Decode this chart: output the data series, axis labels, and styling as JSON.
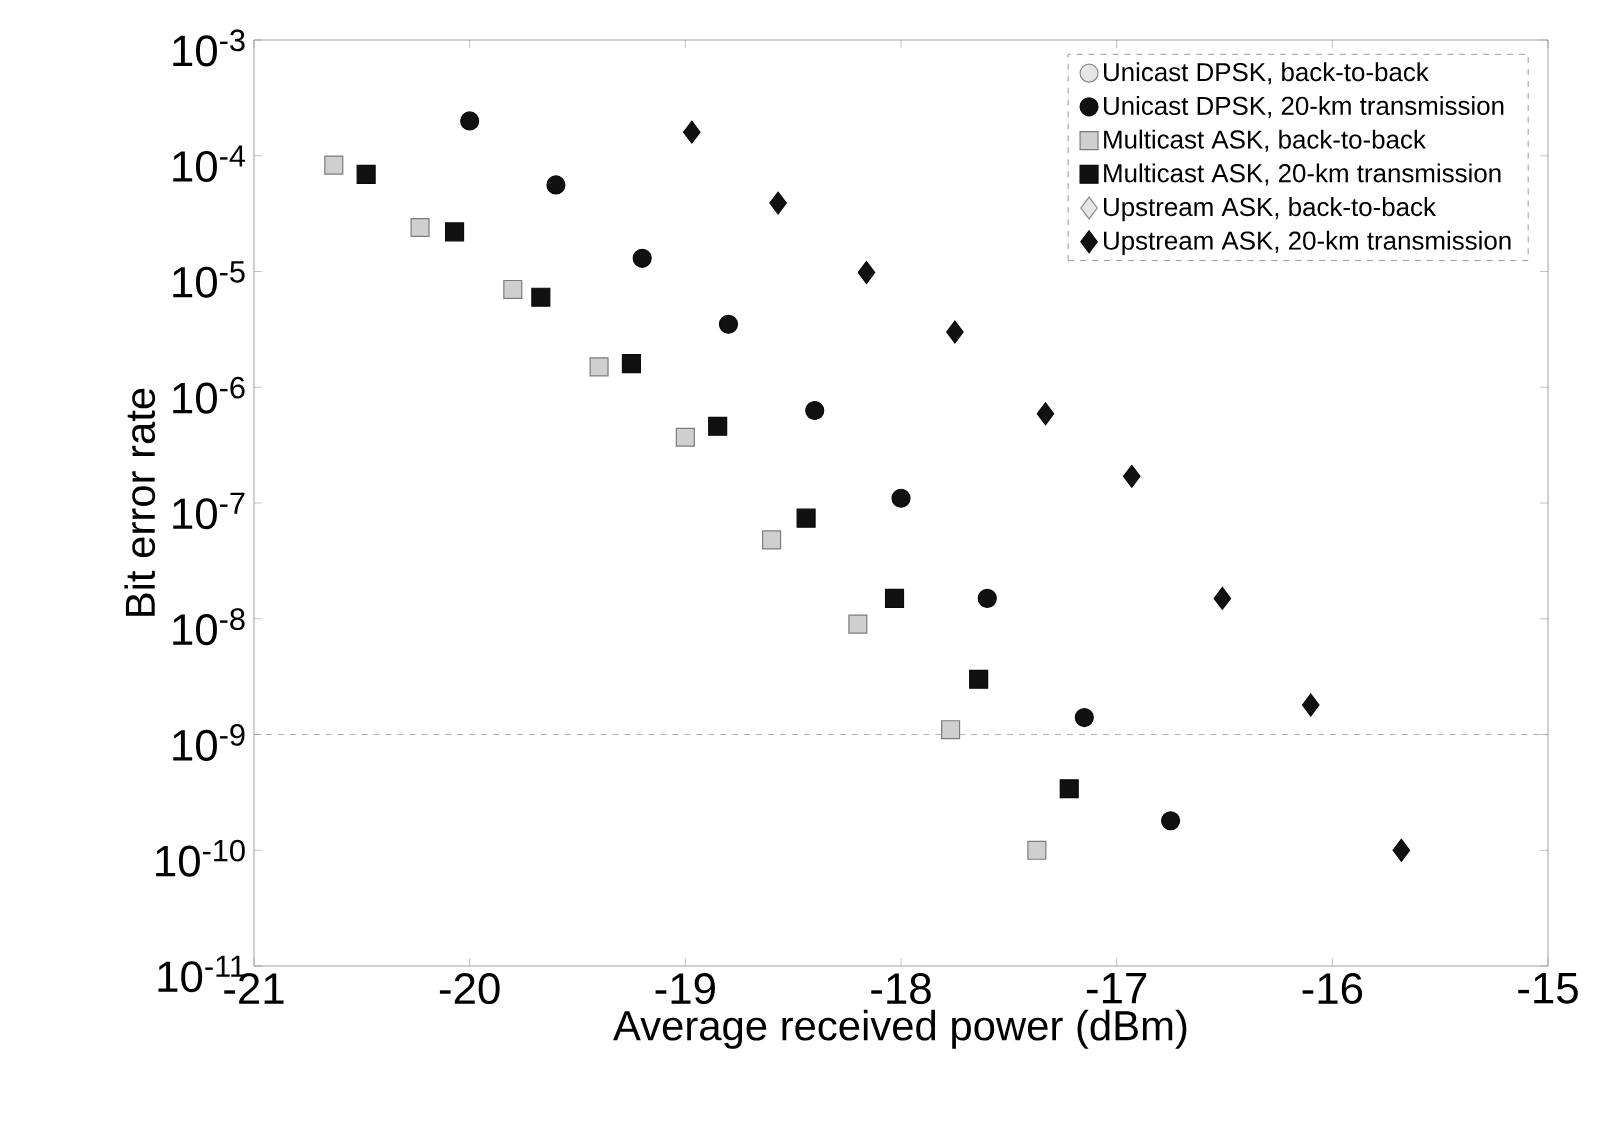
{
  "chart_data": {
    "type": "scatter",
    "xlabel": "Average received power (dBm)",
    "ylabel": "Bit error rate",
    "xlim": [
      -21,
      -15
    ],
    "xticks": [
      -21,
      -20,
      -19,
      -18,
      -17,
      -16,
      -15
    ],
    "ylim": [
      1e-11,
      0.001
    ],
    "yticks": [
      {
        "value": 0.001,
        "label": "10$^{-3}$"
      },
      {
        "value": 0.0001,
        "label": "10$^{-4}$"
      },
      {
        "value": 1e-05,
        "label": "10$^{-5}$"
      },
      {
        "value": 1e-06,
        "label": "10$^{-6}$"
      },
      {
        "value": 1e-07,
        "label": "10$^{-7}$"
      },
      {
        "value": 1e-08,
        "label": "10$^{-8}$"
      },
      {
        "value": 1e-09,
        "label": "10$^{-9}$"
      },
      {
        "value": 1e-10,
        "label": "10$^{-10}$"
      },
      {
        "value": 1e-11,
        "label": "10$^{-11}$"
      }
    ],
    "log": "y",
    "legend": "top right",
    "ref_lines": [
      {
        "axis": "y",
        "value": 1e-09,
        "color": "#999999",
        "line_style": "dashed"
      }
    ],
    "series": [
      {
        "name": "Unicast DPSK, back-to-back",
        "color": "#e6e6e6",
        "marker": "circle"
      },
      {
        "name": "Unicast DPSK, 20-km transmission",
        "color": "#111111",
        "marker": "circle",
        "x": [
          -20.0,
          -19.6,
          -19.2,
          -18.8,
          -18.4,
          -18.0,
          -17.6,
          -17.15,
          -16.75
        ],
        "values": [
          0.0002,
          5.6e-05,
          1.3e-05,
          3.5e-06,
          6.3e-07,
          1.1e-07,
          1.5e-08,
          1.4e-09,
          1.8e-10
        ]
      },
      {
        "name": "Multicast ASK, back-to-back",
        "color": "#cfcfcf",
        "marker": "square",
        "x": [
          -20.63,
          -20.23,
          -19.8,
          -19.4,
          -19.0,
          -18.6,
          -18.2,
          -17.77,
          -17.37
        ],
        "values": [
          8.3e-05,
          2.4e-05,
          7e-06,
          1.5e-06,
          3.7e-07,
          4.8e-08,
          9e-09,
          1.1e-09,
          1e-10
        ]
      },
      {
        "name": "Multicast ASK, 20-km transmission",
        "color": "#111111",
        "marker": "square",
        "x": [
          -20.48,
          -20.07,
          -19.67,
          -19.25,
          -18.85,
          -18.44,
          -18.03,
          -17.64,
          -17.22
        ],
        "values": [
          6.9e-05,
          2.2e-05,
          6e-06,
          1.6e-06,
          4.6e-07,
          7.4e-08,
          1.5e-08,
          3e-09,
          3.4e-10
        ]
      },
      {
        "name": "Upstream ASK, back-to-back",
        "color": "#e6e6e6",
        "marker": "diamond"
      },
      {
        "name": "Upstream ASK, 20-km transmission",
        "color": "#111111",
        "marker": "diamond",
        "x": [
          -18.97,
          -18.57,
          -18.16,
          -17.75,
          -17.33,
          -16.93,
          -16.51,
          -16.1,
          -15.68
        ],
        "values": [
          0.00016,
          3.9e-05,
          9.8e-06,
          3e-06,
          5.9e-07,
          1.7e-07,
          1.5e-08,
          1.8e-09,
          1e-10
        ]
      }
    ]
  }
}
